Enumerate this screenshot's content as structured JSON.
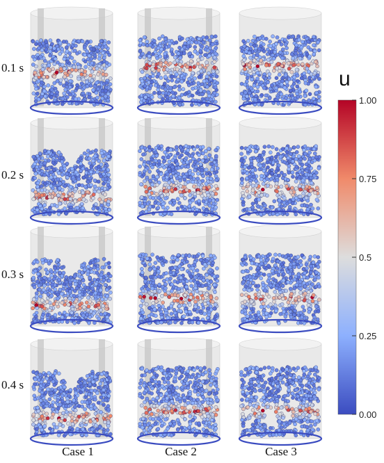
{
  "rows": [
    {
      "label": "0.1 s"
    },
    {
      "label": "0.2 s"
    },
    {
      "label": "0.3 s"
    },
    {
      "label": "0.4 s"
    }
  ],
  "columns": [
    {
      "label": "Case 1",
      "baffles": true
    },
    {
      "label": "Case 2",
      "baffles": true
    },
    {
      "label": "Case 3",
      "baffles": false
    }
  ],
  "colorbar": {
    "title": "u",
    "ticks": [
      "1.00",
      "0.75",
      "0.5",
      "0.25",
      "0.00"
    ],
    "min": 0.0,
    "max": 1.0,
    "colors": {
      "low": "#3b4cc0",
      "mid": "#dddddd",
      "high": "#b40426"
    }
  }
}
